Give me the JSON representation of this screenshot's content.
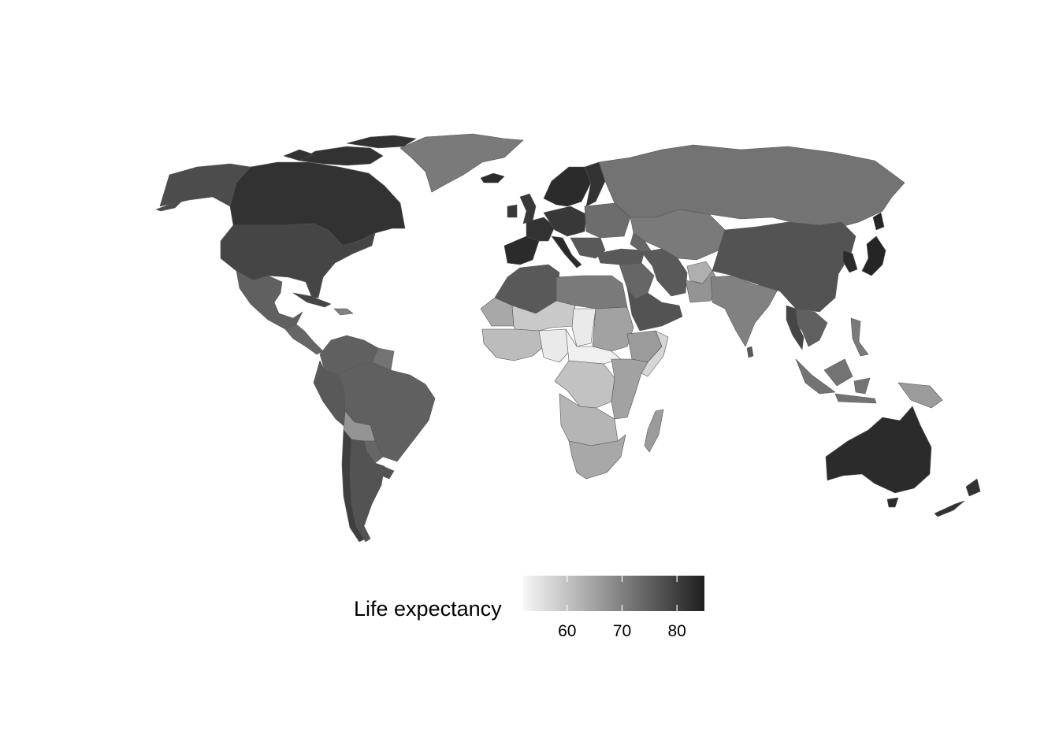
{
  "map": {
    "legend": {
      "title": "Life expectancy",
      "ticks": [
        60,
        70,
        80
      ],
      "range": [
        52,
        85
      ],
      "low_color": "#f7f7f7",
      "high_color": "#1e1e1e"
    },
    "regions": [
      {
        "name": "alaska",
        "value": 78
      },
      {
        "name": "canada",
        "value": 82
      },
      {
        "name": "canadian-arctic-islands",
        "value": 82
      },
      {
        "name": "greenland",
        "value": 71
      },
      {
        "name": "iceland",
        "value": 83
      },
      {
        "name": "united-states",
        "value": 79
      },
      {
        "name": "mexico",
        "value": 75
      },
      {
        "name": "central-america",
        "value": 74
      },
      {
        "name": "cuba",
        "value": 79
      },
      {
        "name": "hispaniola",
        "value": 70
      },
      {
        "name": "colombia-venezuela",
        "value": 75
      },
      {
        "name": "guianas",
        "value": 72
      },
      {
        "name": "peru-ecuador",
        "value": 76
      },
      {
        "name": "brazil",
        "value": 75
      },
      {
        "name": "bolivia",
        "value": 67
      },
      {
        "name": "paraguay",
        "value": 74
      },
      {
        "name": "chile",
        "value": 80
      },
      {
        "name": "argentina",
        "value": 77
      },
      {
        "name": "uruguay",
        "value": 77
      },
      {
        "name": "uk-ireland",
        "value": 81
      },
      {
        "name": "iberia",
        "value": 83
      },
      {
        "name": "france",
        "value": 82
      },
      {
        "name": "central-europe",
        "value": 81
      },
      {
        "name": "italy",
        "value": 83
      },
      {
        "name": "scandinavia",
        "value": 83
      },
      {
        "name": "finland",
        "value": 82
      },
      {
        "name": "eastern-europe",
        "value": 73
      },
      {
        "name": "balkans",
        "value": 76
      },
      {
        "name": "russia",
        "value": 72
      },
      {
        "name": "kazakhstan-central-asia",
        "value": 71
      },
      {
        "name": "turkey",
        "value": 76
      },
      {
        "name": "caucasus",
        "value": 74
      },
      {
        "name": "north-africa-west",
        "value": 76
      },
      {
        "name": "libya-egypt",
        "value": 71
      },
      {
        "name": "western-sahara-mauritania",
        "value": 64
      },
      {
        "name": "mali-niger",
        "value": 59
      },
      {
        "name": "chad",
        "value": 54
      },
      {
        "name": "sudan",
        "value": 65
      },
      {
        "name": "ethiopia",
        "value": 66
      },
      {
        "name": "somalia",
        "value": 57
      },
      {
        "name": "west-africa",
        "value": 61
      },
      {
        "name": "nigeria",
        "value": 54
      },
      {
        "name": "central-africa",
        "value": 53
      },
      {
        "name": "dr-congo",
        "value": 60
      },
      {
        "name": "east-africa",
        "value": 65
      },
      {
        "name": "angola-zambia",
        "value": 62
      },
      {
        "name": "southern-africa",
        "value": 64
      },
      {
        "name": "madagascar",
        "value": 66
      },
      {
        "name": "middle-east",
        "value": 74
      },
      {
        "name": "arabian-peninsula",
        "value": 77
      },
      {
        "name": "iran",
        "value": 76
      },
      {
        "name": "afghanistan",
        "value": 63
      },
      {
        "name": "pakistan",
        "value": 67
      },
      {
        "name": "india",
        "value": 70
      },
      {
        "name": "sri-lanka",
        "value": 76
      },
      {
        "name": "china-mongolia",
        "value": 77
      },
      {
        "name": "korea",
        "value": 83
      },
      {
        "name": "japan",
        "value": 84
      },
      {
        "name": "southeast-asia",
        "value": 75
      },
      {
        "name": "thailand",
        "value": 79
      },
      {
        "name": "malaysia-indonesia",
        "value": 72
      },
      {
        "name": "philippines",
        "value": 71
      },
      {
        "name": "new-guinea",
        "value": 66
      },
      {
        "name": "australia",
        "value": 83
      },
      {
        "name": "tasmania",
        "value": 83
      },
      {
        "name": "new-zealand",
        "value": 82
      }
    ]
  }
}
